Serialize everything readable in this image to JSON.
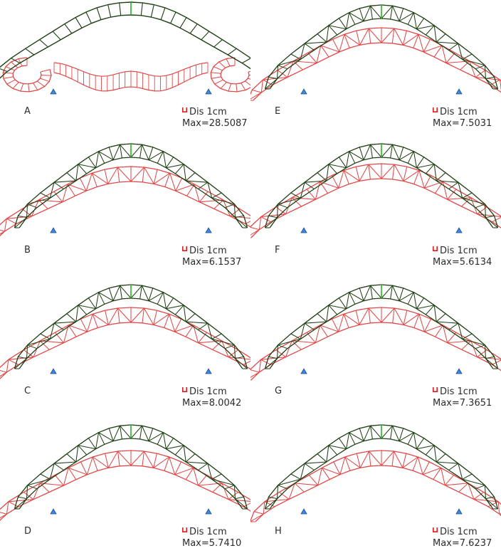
{
  "colors": {
    "deformed": "#e04848",
    "original": "#1f3f14",
    "original_center": "#29b829",
    "support": "#3f86dc",
    "legend_icon": "#e02020"
  },
  "icons": {
    "support": "support-triangle-icon",
    "legend": "scale-bracket-icon"
  },
  "panels": [
    {
      "label": "A",
      "legend_title": "Dis  1cm",
      "legend_max": "Max=28.5087",
      "max_value": 28.5087,
      "variant": "A"
    },
    {
      "label": "E",
      "legend_title": "Dis  1cm",
      "legend_max": "Max=7.5031",
      "max_value": 7.5031,
      "variant": "E"
    },
    {
      "label": "B",
      "legend_title": "Dis  1cm",
      "legend_max": "Max=6.1537",
      "max_value": 6.1537,
      "variant": "B"
    },
    {
      "label": "F",
      "legend_title": "Dis  1cm",
      "legend_max": "Max=5.6134",
      "max_value": 5.6134,
      "variant": "F"
    },
    {
      "label": "C",
      "legend_title": "Dis  1cm",
      "legend_max": "Max=8.0042",
      "max_value": 8.0042,
      "variant": "C"
    },
    {
      "label": "G",
      "legend_title": "Dis  1cm",
      "legend_max": "Max=7.3651",
      "max_value": 7.3651,
      "variant": "G"
    },
    {
      "label": "D",
      "legend_title": "Dis  1cm",
      "legend_max": "Max=5.7410",
      "max_value": 5.741,
      "variant": "D"
    },
    {
      "label": "H",
      "legend_title": "Dis  1cm",
      "legend_max": "Max=7.6237",
      "max_value": 7.6237,
      "variant": "H"
    }
  ]
}
